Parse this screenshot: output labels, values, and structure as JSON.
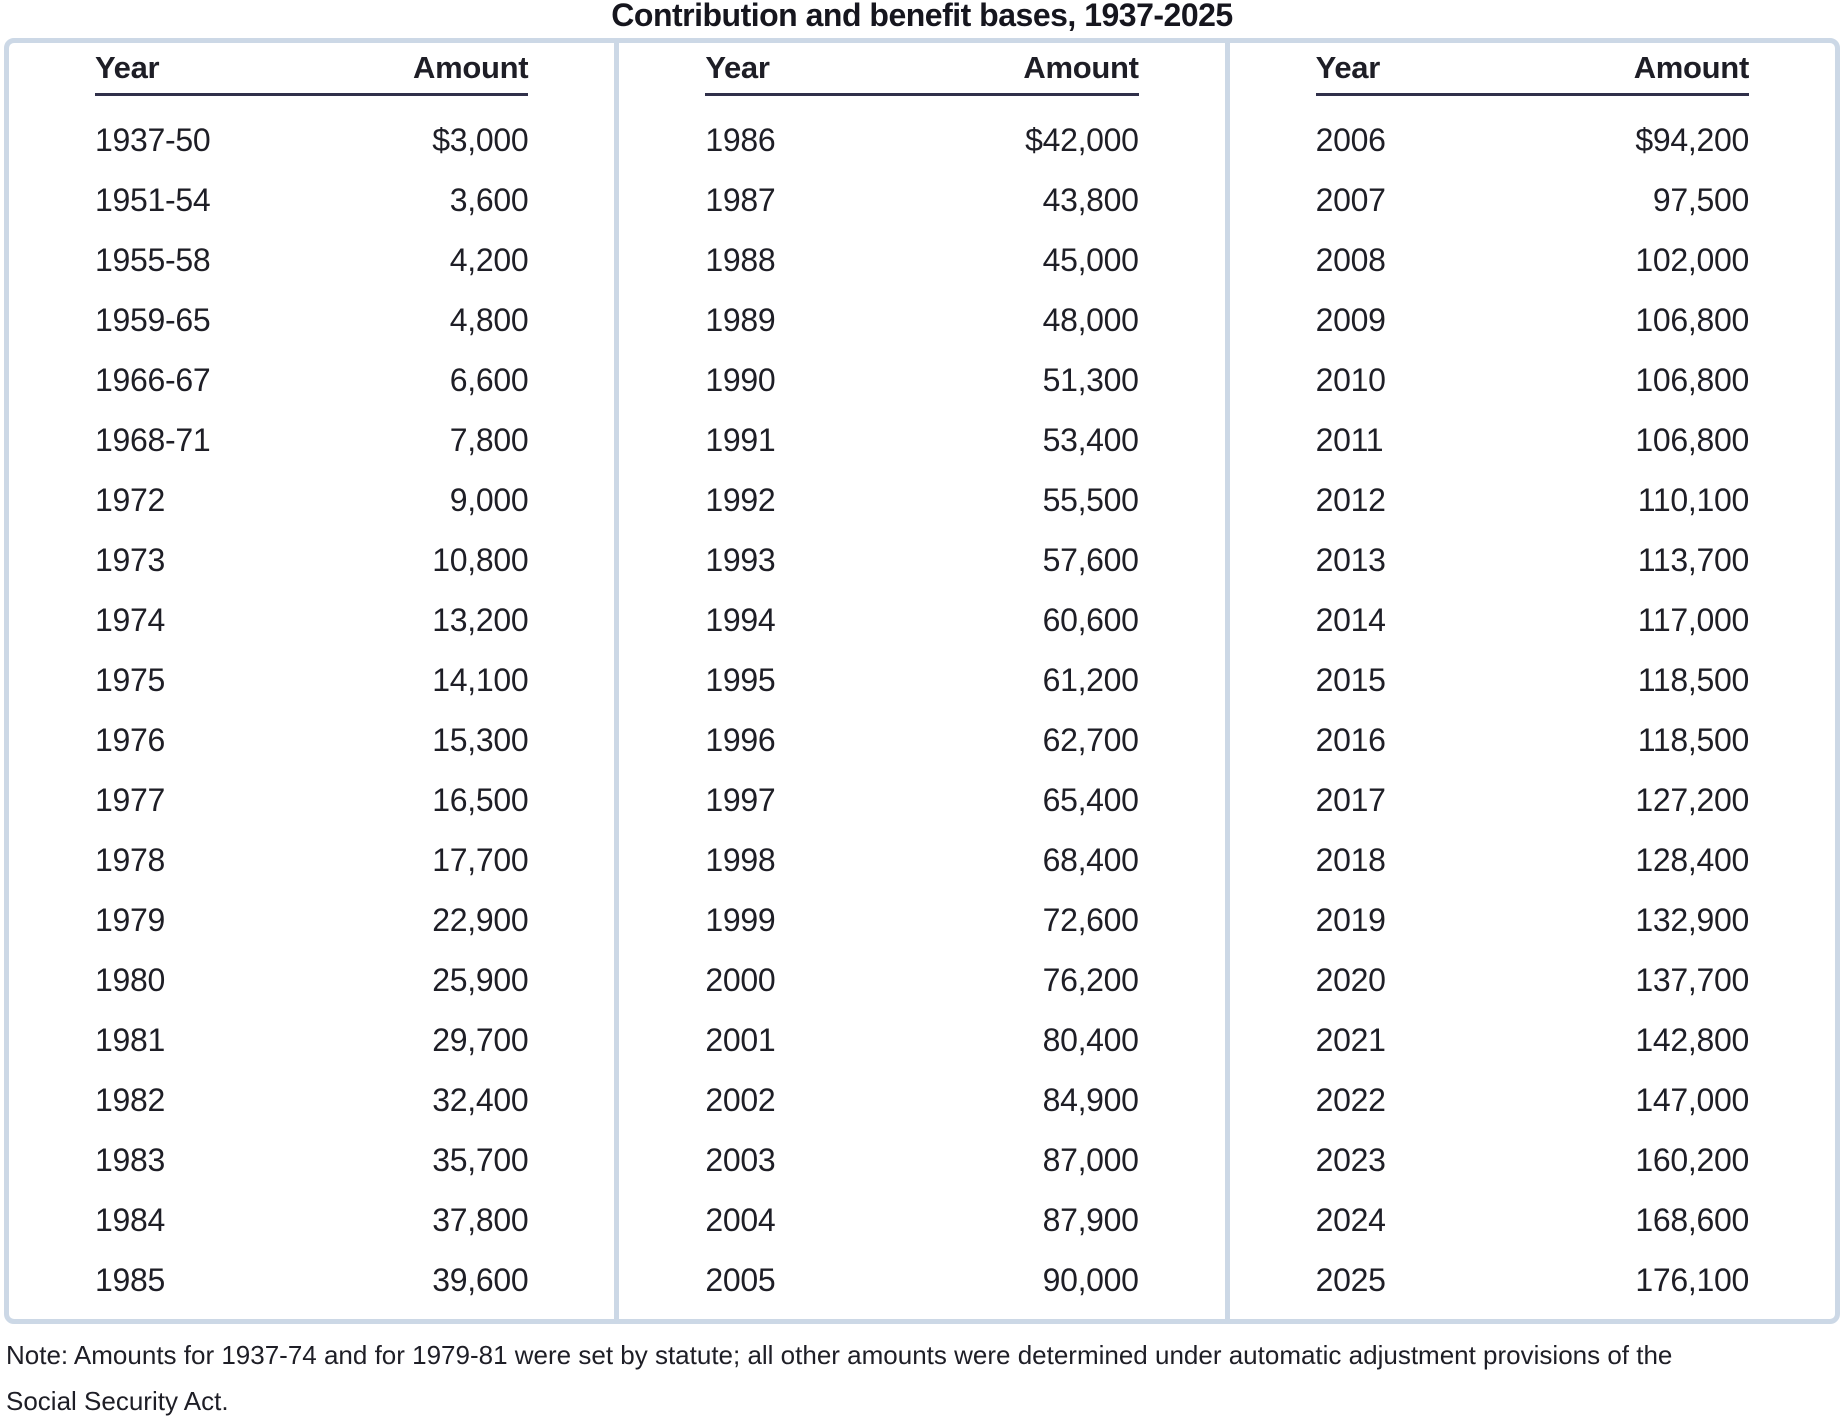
{
  "title": "Contribution and benefit bases, 1937-2025",
  "columns": {
    "year_label": "Year",
    "amount_label": "Amount"
  },
  "panels": [
    {
      "rows": [
        {
          "year": "1937-50",
          "amount": "$3,000"
        },
        {
          "year": "1951-54",
          "amount": "3,600"
        },
        {
          "year": "1955-58",
          "amount": "4,200"
        },
        {
          "year": "1959-65",
          "amount": "4,800"
        },
        {
          "year": "1966-67",
          "amount": "6,600"
        },
        {
          "year": "1968-71",
          "amount": "7,800"
        },
        {
          "year": "1972",
          "amount": "9,000"
        },
        {
          "year": "1973",
          "amount": "10,800"
        },
        {
          "year": "1974",
          "amount": "13,200"
        },
        {
          "year": "1975",
          "amount": "14,100"
        },
        {
          "year": "1976",
          "amount": "15,300"
        },
        {
          "year": "1977",
          "amount": "16,500"
        },
        {
          "year": "1978",
          "amount": "17,700"
        },
        {
          "year": "1979",
          "amount": "22,900"
        },
        {
          "year": "1980",
          "amount": "25,900"
        },
        {
          "year": "1981",
          "amount": "29,700"
        },
        {
          "year": "1982",
          "amount": "32,400"
        },
        {
          "year": "1983",
          "amount": "35,700"
        },
        {
          "year": "1984",
          "amount": "37,800"
        },
        {
          "year": "1985",
          "amount": "39,600"
        }
      ]
    },
    {
      "rows": [
        {
          "year": "1986",
          "amount": "$42,000"
        },
        {
          "year": "1987",
          "amount": "43,800"
        },
        {
          "year": "1988",
          "amount": "45,000"
        },
        {
          "year": "1989",
          "amount": "48,000"
        },
        {
          "year": "1990",
          "amount": "51,300"
        },
        {
          "year": "1991",
          "amount": "53,400"
        },
        {
          "year": "1992",
          "amount": "55,500"
        },
        {
          "year": "1993",
          "amount": "57,600"
        },
        {
          "year": "1994",
          "amount": "60,600"
        },
        {
          "year": "1995",
          "amount": "61,200"
        },
        {
          "year": "1996",
          "amount": "62,700"
        },
        {
          "year": "1997",
          "amount": "65,400"
        },
        {
          "year": "1998",
          "amount": "68,400"
        },
        {
          "year": "1999",
          "amount": "72,600"
        },
        {
          "year": "2000",
          "amount": "76,200"
        },
        {
          "year": "2001",
          "amount": "80,400"
        },
        {
          "year": "2002",
          "amount": "84,900"
        },
        {
          "year": "2003",
          "amount": "87,000"
        },
        {
          "year": "2004",
          "amount": "87,900"
        },
        {
          "year": "2005",
          "amount": "90,000"
        }
      ]
    },
    {
      "rows": [
        {
          "year": "2006",
          "amount": "$94,200"
        },
        {
          "year": "2007",
          "amount": "97,500"
        },
        {
          "year": "2008",
          "amount": "102,000"
        },
        {
          "year": "2009",
          "amount": "106,800"
        },
        {
          "year": "2010",
          "amount": "106,800"
        },
        {
          "year": "2011",
          "amount": "106,800"
        },
        {
          "year": "2012",
          "amount": "110,100"
        },
        {
          "year": "2013",
          "amount": "113,700"
        },
        {
          "year": "2014",
          "amount": "117,000"
        },
        {
          "year": "2015",
          "amount": "118,500"
        },
        {
          "year": "2016",
          "amount": "118,500"
        },
        {
          "year": "2017",
          "amount": "127,200"
        },
        {
          "year": "2018",
          "amount": "128,400"
        },
        {
          "year": "2019",
          "amount": "132,900"
        },
        {
          "year": "2020",
          "amount": "137,700"
        },
        {
          "year": "2021",
          "amount": "142,800"
        },
        {
          "year": "2022",
          "amount": "147,000"
        },
        {
          "year": "2023",
          "amount": "160,200"
        },
        {
          "year": "2024",
          "amount": "168,600"
        },
        {
          "year": "2025",
          "amount": "176,100"
        }
      ]
    }
  ],
  "note": "Note: Amounts for 1937-74 and for 1979-81 were set by statute; all other amounts were determined under automatic adjustment provisions of the Social Security Act.",
  "colors": {
    "border": "#ccd8e6",
    "header_rule": "#30304a",
    "text": "#1e1e26"
  }
}
